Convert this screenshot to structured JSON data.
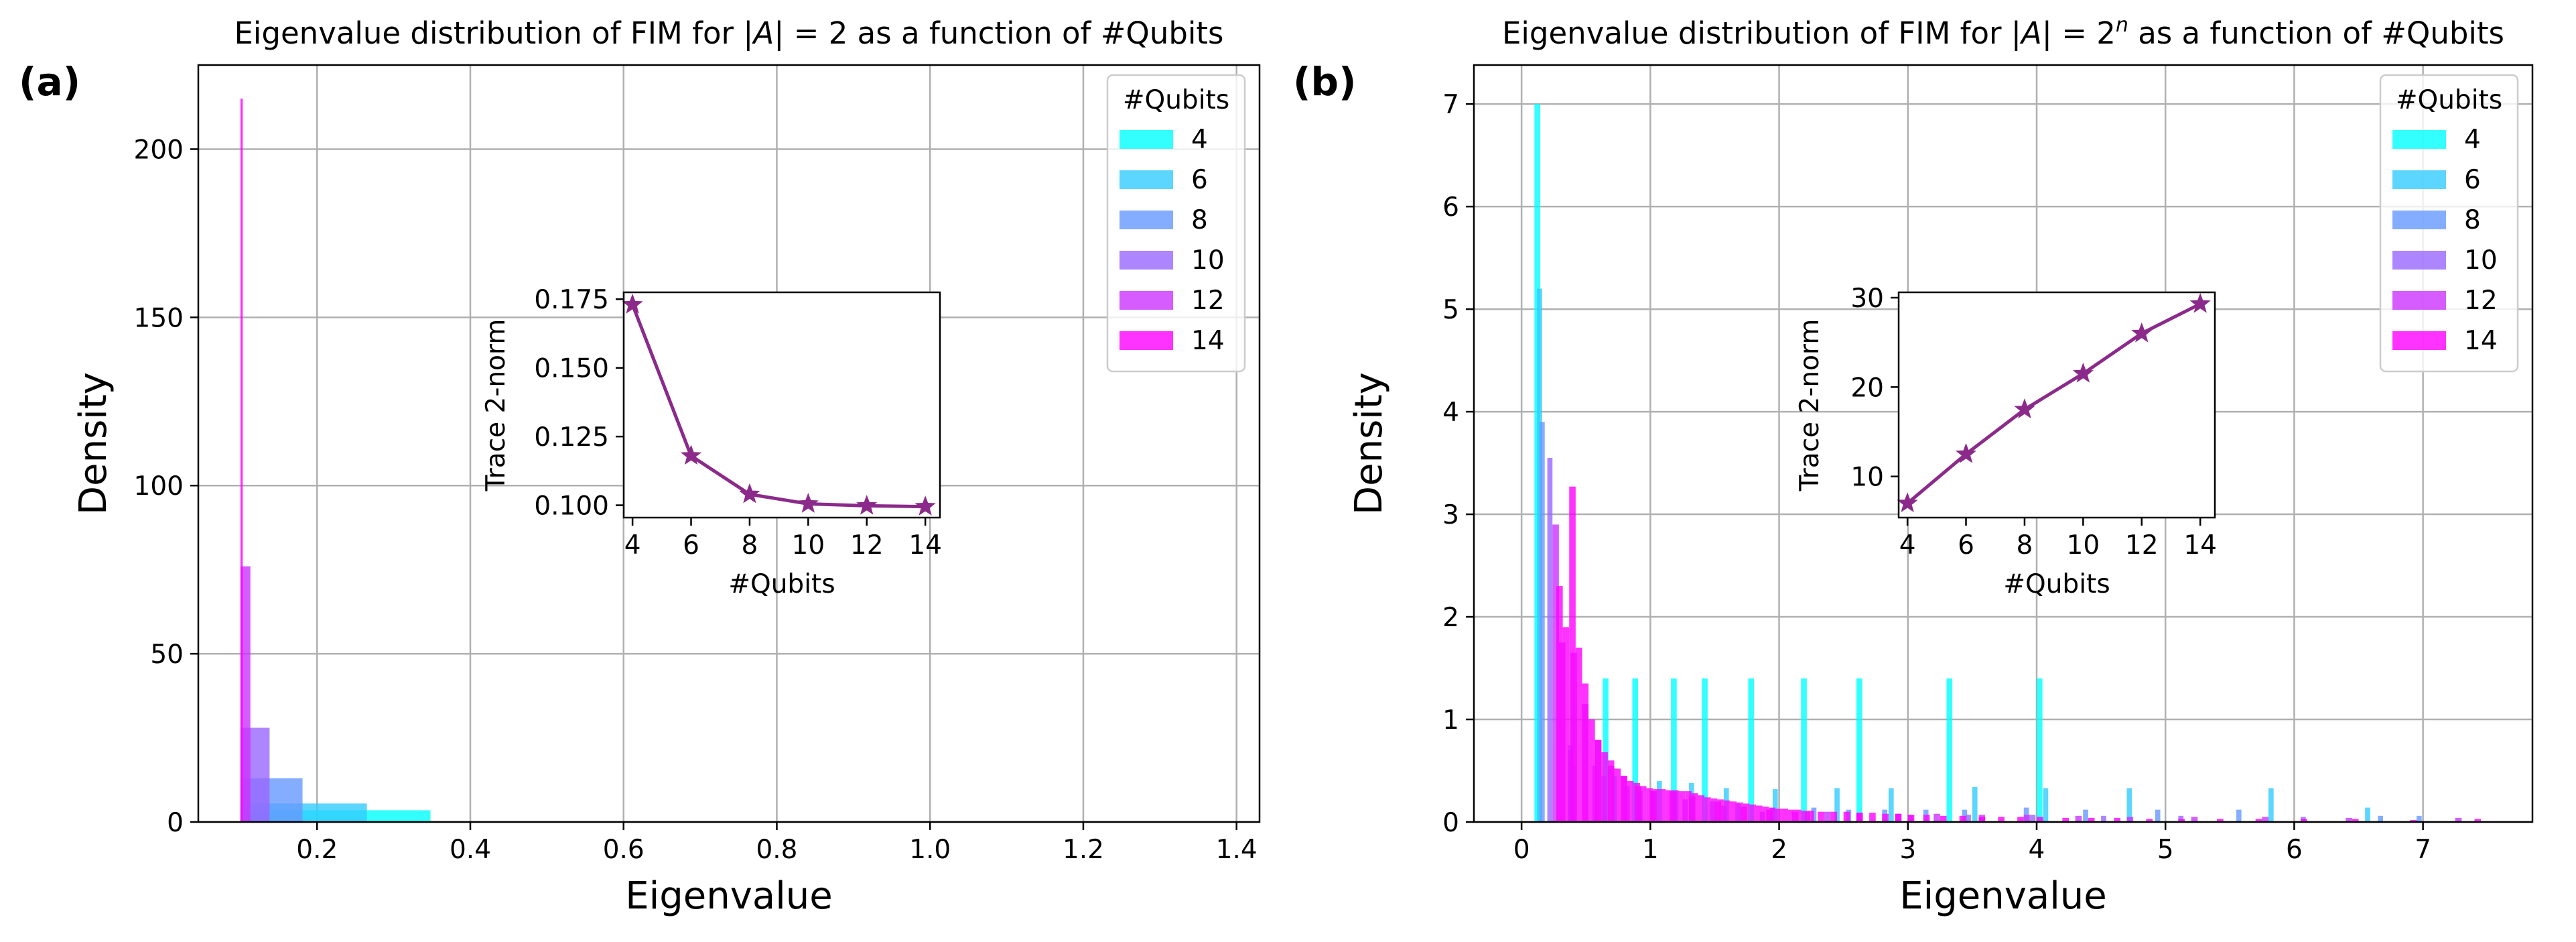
{
  "chart_data": [
    {
      "panel_label": "(a)",
      "type": "histogram",
      "title_prefix": "Eigenvalue distribution of FIM for |",
      "title_var": "A",
      "title_mid": "| = 2",
      "title_sup": "",
      "title_suffix": " as a function of #Qubits",
      "xlabel": "Eigenvalue",
      "ylabel": "Density",
      "xlim": [
        0.045,
        1.43
      ],
      "ylim": [
        0,
        225
      ],
      "xticks": [
        0.2,
        0.4,
        0.6,
        0.8,
        1.0,
        1.2,
        1.4
      ],
      "xtick_labels": [
        "0.2",
        "0.4",
        "0.6",
        "0.8",
        "1.0",
        "1.2",
        "1.4"
      ],
      "yticks": [
        0,
        50,
        100,
        150,
        200
      ],
      "ytick_labels": [
        "0",
        "50",
        "100",
        "150",
        "200"
      ],
      "grid": true,
      "legend": {
        "title": "#Qubits",
        "placement": "top-right",
        "entries": [
          "4",
          "6",
          "8",
          "10",
          "12",
          "14"
        ],
        "colors": [
          "#00ffff",
          "#33ccff",
          "#6699ff",
          "#9966ff",
          "#cc33ff",
          "#ff00ff"
        ]
      },
      "series": [
        {
          "name": "4",
          "color": "#00ffff",
          "bins": [
            [
              0.1,
              0.348,
              3.5
            ]
          ]
        },
        {
          "name": "6",
          "color": "#33ccff",
          "bins": [
            [
              0.1,
              0.265,
              5.5
            ]
          ]
        },
        {
          "name": "8",
          "color": "#6699ff",
          "bins": [
            [
              0.1,
              0.181,
              13
            ]
          ]
        },
        {
          "name": "10",
          "color": "#9966ff",
          "bins": [
            [
              0.1,
              0.138,
              28
            ]
          ]
        },
        {
          "name": "12",
          "color": "#cc33ff",
          "bins": [
            [
              0.1,
              0.113,
              76
            ]
          ]
        },
        {
          "name": "14",
          "color": "#ff00ff",
          "bins": [
            [
              0.1,
              0.103,
              215
            ]
          ]
        }
      ],
      "inset": {
        "type": "line",
        "xlabel": "#Qubits",
        "ylabel": "Trace 2-norm",
        "x": [
          4,
          6,
          8,
          10,
          12,
          14
        ],
        "y": [
          0.173,
          0.118,
          0.104,
          0.1005,
          0.0998,
          0.0995
        ],
        "xlim": [
          3.7,
          14.5
        ],
        "ylim": [
          0.0955,
          0.1775
        ],
        "xticks": [
          4,
          6,
          8,
          10,
          12,
          14
        ],
        "xtick_labels": [
          "4",
          "6",
          "8",
          "10",
          "12",
          "14"
        ],
        "yticks": [
          0.1,
          0.125,
          0.15,
          0.175
        ],
        "ytick_labels": [
          "0.100",
          "0.125",
          "0.150",
          "0.175"
        ],
        "color": "#8b2a8b",
        "marker": "star"
      }
    },
    {
      "panel_label": "(b)",
      "type": "histogram",
      "title_prefix": "Eigenvalue distribution of FIM for |",
      "title_var": "A",
      "title_mid": "| = 2",
      "title_sup": "n",
      "title_suffix": " as a function of #Qubits",
      "xlabel": "Eigenvalue",
      "ylabel": "Density",
      "xlim": [
        -0.37,
        7.85
      ],
      "ylim": [
        0,
        7.38
      ],
      "xticks": [
        0,
        1,
        2,
        3,
        4,
        5,
        6,
        7
      ],
      "xtick_labels": [
        "0",
        "1",
        "2",
        "3",
        "4",
        "5",
        "6",
        "7"
      ],
      "yticks": [
        0,
        1,
        2,
        3,
        4,
        5,
        6,
        7
      ],
      "ytick_labels": [
        "0",
        "1",
        "2",
        "3",
        "4",
        "5",
        "6",
        "7"
      ],
      "grid": true,
      "legend": {
        "title": "#Qubits",
        "placement": "top-right",
        "entries": [
          "4",
          "6",
          "8",
          "10",
          "12",
          "14"
        ],
        "colors": [
          "#00ffff",
          "#33ccff",
          "#6699ff",
          "#9966ff",
          "#cc33ff",
          "#ff00ff"
        ]
      },
      "series": [
        {
          "name": "4",
          "color": "#00ffff",
          "bins": [
            [
              0.1,
              0.145,
              7.0
            ],
            [
              0.63,
              0.675,
              1.4
            ],
            [
              0.86,
              0.905,
              1.4
            ],
            [
              1.16,
              1.205,
              1.4
            ],
            [
              1.4,
              1.445,
              1.4
            ],
            [
              1.76,
              1.805,
              1.4
            ],
            [
              2.17,
              2.215,
              1.4
            ],
            [
              2.6,
              2.645,
              1.4
            ],
            [
              3.3,
              3.345,
              1.4
            ],
            [
              4.0,
              4.045,
              1.4
            ]
          ]
        },
        {
          "name": "6",
          "color": "#33ccff",
          "bins": [
            [
              0.12,
              0.16,
              5.2
            ],
            [
              0.38,
              0.42,
              0.55
            ],
            [
              0.7,
              0.74,
              0.45
            ],
            [
              1.05,
              1.09,
              0.4
            ],
            [
              1.3,
              1.34,
              0.38
            ],
            [
              1.57,
              1.61,
              0.33
            ],
            [
              1.95,
              1.99,
              0.32
            ],
            [
              2.43,
              2.47,
              0.33
            ],
            [
              2.85,
              2.89,
              0.33
            ],
            [
              3.5,
              3.54,
              0.34
            ],
            [
              4.05,
              4.09,
              0.33
            ],
            [
              4.7,
              4.74,
              0.33
            ],
            [
              5.8,
              5.84,
              0.33
            ],
            [
              6.55,
              6.59,
              0.14
            ]
          ]
        },
        {
          "name": "8",
          "color": "#6699ff",
          "bins": [
            [
              0.14,
              0.18,
              3.9
            ],
            [
              0.36,
              0.4,
              0.75
            ],
            [
              0.62,
              0.66,
              0.45
            ],
            [
              0.9,
              0.94,
              0.3
            ],
            [
              1.18,
              1.22,
              0.3
            ],
            [
              1.46,
              1.5,
              0.2
            ],
            [
              1.66,
              1.7,
              0.18
            ],
            [
              1.93,
              1.97,
              0.14
            ],
            [
              2.25,
              2.29,
              0.14
            ],
            [
              2.52,
              2.56,
              0.12
            ],
            [
              2.8,
              2.84,
              0.12
            ],
            [
              3.12,
              3.16,
              0.12
            ],
            [
              3.42,
              3.46,
              0.12
            ],
            [
              3.9,
              3.94,
              0.14
            ],
            [
              4.36,
              4.4,
              0.12
            ],
            [
              4.92,
              4.96,
              0.12
            ],
            [
              5.55,
              5.59,
              0.12
            ],
            [
              6.65,
              6.69,
              0.06
            ],
            [
              6.95,
              6.99,
              0.06
            ]
          ]
        },
        {
          "name": "10",
          "color": "#9966ff",
          "bins": [
            [
              0.2,
              0.24,
              3.55
            ],
            [
              0.36,
              0.4,
              0.7
            ],
            [
              0.55,
              0.59,
              0.55
            ],
            [
              0.8,
              0.84,
              0.35
            ],
            [
              1.0,
              1.04,
              0.3
            ],
            [
              1.25,
              1.29,
              0.22
            ],
            [
              1.55,
              1.59,
              0.16
            ],
            [
              1.85,
              1.89,
              0.1
            ],
            [
              2.2,
              2.24,
              0.1
            ],
            [
              2.6,
              2.64,
              0.08
            ],
            [
              3.0,
              3.04,
              0.07
            ],
            [
              3.45,
              3.49,
              0.07
            ],
            [
              3.95,
              3.99,
              0.07
            ],
            [
              4.5,
              4.54,
              0.06
            ],
            [
              5.1,
              5.14,
              0.06
            ],
            [
              6.05,
              6.09,
              0.05
            ]
          ]
        },
        {
          "name": "12",
          "color": "#cc33ff",
          "bins": [
            [
              0.24,
              0.29,
              2.9
            ],
            [
              0.29,
              0.34,
              1.75
            ],
            [
              0.38,
              0.43,
              1.65
            ],
            [
              0.47,
              0.52,
              1.15
            ],
            [
              0.57,
              0.62,
              0.8
            ],
            [
              0.67,
              0.72,
              0.55
            ],
            [
              0.77,
              0.82,
              0.45
            ],
            [
              0.88,
              0.93,
              0.35
            ],
            [
              1.0,
              1.05,
              0.3
            ],
            [
              1.15,
              1.2,
              0.3
            ],
            [
              1.3,
              1.35,
              0.25
            ],
            [
              1.5,
              1.55,
              0.2
            ],
            [
              1.7,
              1.75,
              0.15
            ],
            [
              1.9,
              1.95,
              0.12
            ],
            [
              2.1,
              2.15,
              0.1
            ],
            [
              2.35,
              2.4,
              0.1
            ],
            [
              2.6,
              2.65,
              0.09
            ],
            [
              2.9,
              2.95,
              0.08
            ],
            [
              3.2,
              3.25,
              0.08
            ],
            [
              3.55,
              3.6,
              0.07
            ],
            [
              3.9,
              3.95,
              0.07
            ],
            [
              4.3,
              4.35,
              0.06
            ],
            [
              4.7,
              4.75,
              0.05
            ],
            [
              5.2,
              5.25,
              0.05
            ],
            [
              5.75,
              5.8,
              0.05
            ],
            [
              6.4,
              6.45,
              0.04
            ],
            [
              7.25,
              7.3,
              0.04
            ]
          ]
        },
        {
          "name": "14",
          "color": "#ff00ff",
          "bins": [
            [
              0.27,
              0.32,
              2.3
            ],
            [
              0.32,
              0.37,
              1.9
            ],
            [
              0.37,
              0.42,
              3.27
            ],
            [
              0.42,
              0.47,
              1.7
            ],
            [
              0.47,
              0.52,
              1.35
            ],
            [
              0.52,
              0.57,
              1.0
            ],
            [
              0.57,
              0.62,
              0.8
            ],
            [
              0.62,
              0.67,
              0.68
            ],
            [
              0.67,
              0.72,
              0.6
            ],
            [
              0.72,
              0.77,
              0.52
            ],
            [
              0.77,
              0.82,
              0.45
            ],
            [
              0.82,
              0.87,
              0.4
            ],
            [
              0.87,
              0.92,
              0.38
            ],
            [
              0.92,
              0.97,
              0.35
            ],
            [
              0.97,
              1.02,
              0.33
            ],
            [
              1.02,
              1.07,
              0.32
            ],
            [
              1.07,
              1.12,
              0.32
            ],
            [
              1.12,
              1.17,
              0.31
            ],
            [
              1.17,
              1.22,
              0.31
            ],
            [
              1.22,
              1.27,
              0.3
            ],
            [
              1.27,
              1.32,
              0.3
            ],
            [
              1.32,
              1.37,
              0.28
            ],
            [
              1.37,
              1.42,
              0.26
            ],
            [
              1.42,
              1.47,
              0.24
            ],
            [
              1.47,
              1.52,
              0.23
            ],
            [
              1.52,
              1.57,
              0.22
            ],
            [
              1.57,
              1.62,
              0.21
            ],
            [
              1.62,
              1.67,
              0.2
            ],
            [
              1.67,
              1.72,
              0.19
            ],
            [
              1.72,
              1.77,
              0.18
            ],
            [
              1.77,
              1.82,
              0.17
            ],
            [
              1.82,
              1.87,
              0.16
            ],
            [
              1.87,
              1.92,
              0.15
            ],
            [
              1.92,
              1.97,
              0.14
            ],
            [
              1.97,
              2.02,
              0.13
            ],
            [
              2.02,
              2.07,
              0.13
            ],
            [
              2.07,
              2.12,
              0.12
            ],
            [
              2.12,
              2.17,
              0.12
            ],
            [
              2.17,
              2.22,
              0.11
            ],
            [
              2.22,
              2.27,
              0.11
            ],
            [
              2.3,
              2.35,
              0.1
            ],
            [
              2.4,
              2.45,
              0.1
            ],
            [
              2.5,
              2.55,
              0.1
            ],
            [
              2.6,
              2.65,
              0.09
            ],
            [
              2.7,
              2.75,
              0.09
            ],
            [
              2.8,
              2.85,
              0.08
            ],
            [
              2.9,
              2.95,
              0.08
            ],
            [
              3.0,
              3.05,
              0.07
            ],
            [
              3.12,
              3.17,
              0.07
            ],
            [
              3.25,
              3.3,
              0.06
            ],
            [
              3.4,
              3.45,
              0.06
            ],
            [
              3.55,
              3.6,
              0.05
            ],
            [
              3.7,
              3.75,
              0.05
            ],
            [
              3.85,
              3.9,
              0.05
            ],
            [
              4.0,
              4.05,
              0.05
            ],
            [
              4.2,
              4.25,
              0.04
            ],
            [
              4.4,
              4.45,
              0.04
            ],
            [
              4.6,
              4.65,
              0.04
            ],
            [
              4.85,
              4.9,
              0.03
            ],
            [
              5.1,
              5.15,
              0.03
            ],
            [
              5.4,
              5.45,
              0.03
            ],
            [
              5.7,
              5.75,
              0.03
            ],
            [
              6.05,
              6.1,
              0.03
            ],
            [
              6.45,
              6.5,
              0.03
            ],
            [
              6.9,
              6.95,
              0.02
            ],
            [
              7.4,
              7.45,
              0.03
            ]
          ]
        }
      ],
      "inset": {
        "type": "line",
        "xlabel": "#Qubits",
        "ylabel": "Trace 2-norm",
        "x": [
          4,
          6,
          8,
          10,
          12,
          14
        ],
        "y": [
          7.0,
          12.5,
          17.5,
          21.5,
          26.0,
          29.3
        ],
        "xlim": [
          3.7,
          14.5
        ],
        "ylim": [
          5.4,
          30.6
        ],
        "xticks": [
          4,
          6,
          8,
          10,
          12,
          14
        ],
        "xtick_labels": [
          "4",
          "6",
          "8",
          "10",
          "12",
          "14"
        ],
        "yticks": [
          10,
          20,
          30
        ],
        "ytick_labels": [
          "10",
          "20",
          "30"
        ],
        "color": "#8b2a8b",
        "marker": "star"
      }
    }
  ]
}
